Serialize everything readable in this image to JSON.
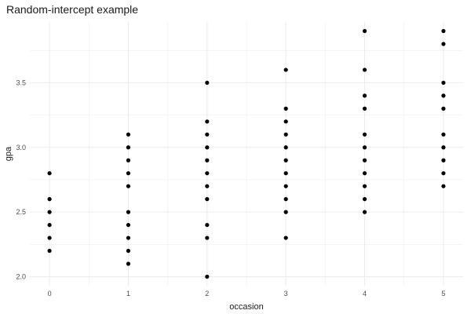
{
  "chart_data": {
    "type": "scatter",
    "title": "Random-intercept example",
    "xlabel": "occasion",
    "ylabel": "gpa",
    "xlim": [
      -0.25,
      5.25
    ],
    "ylim": [
      1.93,
      3.97
    ],
    "x_ticks": [
      0,
      1,
      2,
      3,
      4,
      5
    ],
    "x_tick_labels": [
      "0",
      "1",
      "2",
      "3",
      "4",
      "5"
    ],
    "y_ticks": [
      2.0,
      2.5,
      3.0,
      3.5
    ],
    "y_tick_labels": [
      "2.0",
      "2.5",
      "3.0",
      "3.5"
    ],
    "grid": true,
    "legend": "none",
    "point_color": "#000000",
    "grid_color": "#ebebeb",
    "series": [
      {
        "name": "gpa",
        "points": [
          {
            "x": 0,
            "y": 2.8
          },
          {
            "x": 0,
            "y": 2.6
          },
          {
            "x": 0,
            "y": 2.5
          },
          {
            "x": 0,
            "y": 2.4
          },
          {
            "x": 0,
            "y": 2.3
          },
          {
            "x": 0,
            "y": 2.2
          },
          {
            "x": 1,
            "y": 3.1
          },
          {
            "x": 1,
            "y": 3.0
          },
          {
            "x": 1,
            "y": 2.9
          },
          {
            "x": 1,
            "y": 2.8
          },
          {
            "x": 1,
            "y": 2.7
          },
          {
            "x": 1,
            "y": 2.5
          },
          {
            "x": 1,
            "y": 2.4
          },
          {
            "x": 1,
            "y": 2.3
          },
          {
            "x": 1,
            "y": 2.2
          },
          {
            "x": 1,
            "y": 2.1
          },
          {
            "x": 2,
            "y": 3.5
          },
          {
            "x": 2,
            "y": 3.2
          },
          {
            "x": 2,
            "y": 3.1
          },
          {
            "x": 2,
            "y": 3.0
          },
          {
            "x": 2,
            "y": 2.9
          },
          {
            "x": 2,
            "y": 2.8
          },
          {
            "x": 2,
            "y": 2.7
          },
          {
            "x": 2,
            "y": 2.6
          },
          {
            "x": 2,
            "y": 2.4
          },
          {
            "x": 2,
            "y": 2.3
          },
          {
            "x": 2,
            "y": 2.0
          },
          {
            "x": 3,
            "y": 3.6
          },
          {
            "x": 3,
            "y": 3.3
          },
          {
            "x": 3,
            "y": 3.2
          },
          {
            "x": 3,
            "y": 3.1
          },
          {
            "x": 3,
            "y": 3.0
          },
          {
            "x": 3,
            "y": 2.9
          },
          {
            "x": 3,
            "y": 2.8
          },
          {
            "x": 3,
            "y": 2.7
          },
          {
            "x": 3,
            "y": 2.6
          },
          {
            "x": 3,
            "y": 2.5
          },
          {
            "x": 3,
            "y": 2.3
          },
          {
            "x": 4,
            "y": 3.9
          },
          {
            "x": 4,
            "y": 3.6
          },
          {
            "x": 4,
            "y": 3.4
          },
          {
            "x": 4,
            "y": 3.3
          },
          {
            "x": 4,
            "y": 3.1
          },
          {
            "x": 4,
            "y": 3.0
          },
          {
            "x": 4,
            "y": 2.9
          },
          {
            "x": 4,
            "y": 2.8
          },
          {
            "x": 4,
            "y": 2.7
          },
          {
            "x": 4,
            "y": 2.6
          },
          {
            "x": 4,
            "y": 2.5
          },
          {
            "x": 5,
            "y": 3.9
          },
          {
            "x": 5,
            "y": 3.8
          },
          {
            "x": 5,
            "y": 3.5
          },
          {
            "x": 5,
            "y": 3.4
          },
          {
            "x": 5,
            "y": 3.3
          },
          {
            "x": 5,
            "y": 3.1
          },
          {
            "x": 5,
            "y": 3.0
          },
          {
            "x": 5,
            "y": 2.9
          },
          {
            "x": 5,
            "y": 2.8
          },
          {
            "x": 5,
            "y": 2.7
          }
        ]
      }
    ]
  }
}
